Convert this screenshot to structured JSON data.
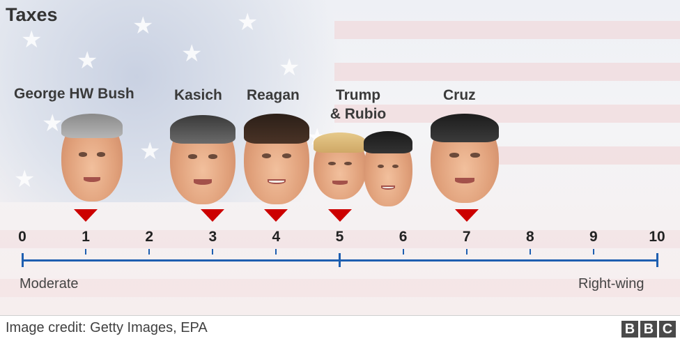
{
  "title": "Taxes",
  "scale": {
    "ticks": [
      "0",
      "1",
      "2",
      "3",
      "4",
      "5",
      "6",
      "7",
      "8",
      "9",
      "10"
    ],
    "left_label": "Moderate",
    "right_label": "Right-wing",
    "min": 0,
    "max": 10,
    "axis_color": "#1e5fb0",
    "marker_color": "#cc0000"
  },
  "candidates": [
    {
      "id": "bush",
      "label": "George HW Bush",
      "value": 1
    },
    {
      "id": "kasich",
      "label": "Kasich",
      "value": 3
    },
    {
      "id": "reagan",
      "label": "Reagan",
      "value": 4
    },
    {
      "id": "trump-rubio",
      "label_line1": "Trump",
      "label_line2": "& Rubio",
      "value": 5
    },
    {
      "id": "cruz",
      "label": "Cruz",
      "value": 7
    }
  ],
  "footer": {
    "credit": "Image credit: Getty Images, EPA",
    "logo_letters": [
      "B",
      "B",
      "C"
    ]
  }
}
